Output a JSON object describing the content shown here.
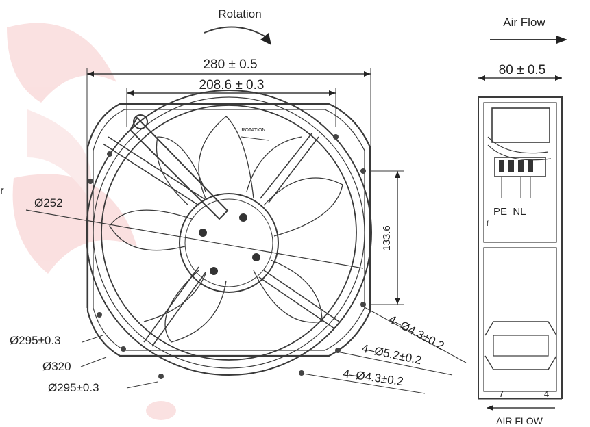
{
  "front_view": {
    "rotation_label": "Rotation",
    "width_dim": "280 ± 0.5",
    "hole_spacing_dim": "208.6 ± 0.3",
    "vertical_dim": "133.6",
    "blade_diameter": "Ø252",
    "frame_diameter_1": "Ø295±0.3",
    "outer_diameter": "Ø320",
    "frame_diameter_2": "Ø295±0.3",
    "holes_1": "4–Ø4.3±0.2",
    "holes_2": "4–Ø5.2±0.2",
    "holes_3": "4–Ø4.3±0.2",
    "edge_letter": "r"
  },
  "side_view": {
    "airflow_top_label": "Air Flow",
    "depth_dim": "80 ± 0.5",
    "terminal_labels": "PE  NL",
    "small_dim_left": "7",
    "small_dim_right": "4",
    "airflow_bottom_label": "AIR FLOW"
  },
  "colors": {
    "watermark": "#f6c8c8",
    "line": "#3a3a3a"
  }
}
